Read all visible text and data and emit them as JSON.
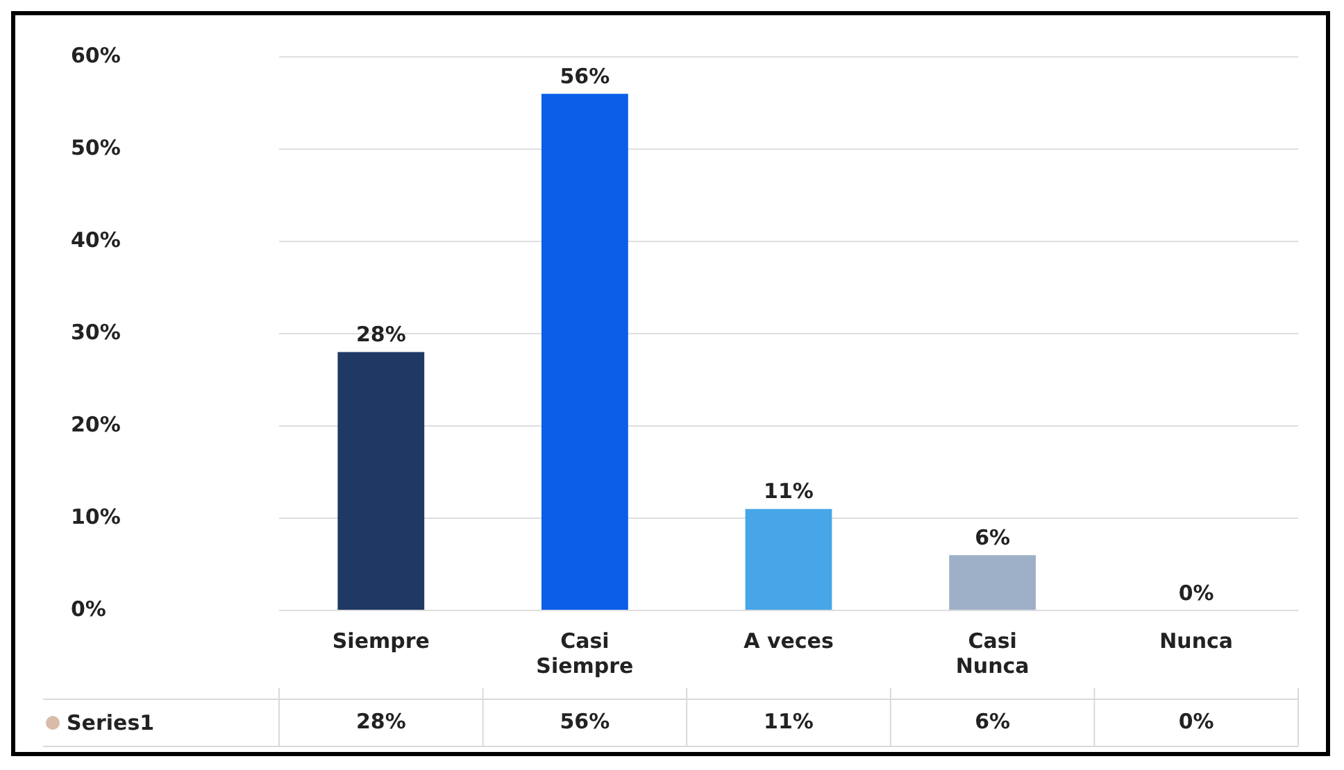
{
  "chart_data": {
    "type": "bar",
    "categories": [
      "Siempre",
      "Casi Siempre",
      "A veces",
      "Casi Nunca",
      "Nunca"
    ],
    "series": [
      {
        "name": "Series1",
        "color": "#d9bca8",
        "colors": [
          "#1f3864",
          "#0a5ee8",
          "#47a6e8",
          "#9eb0c8",
          "#5a5a5a"
        ],
        "values": [
          28,
          56,
          11,
          6,
          0
        ]
      }
    ],
    "ylim": [
      0,
      60
    ],
    "yticks": [
      {
        "value": 0,
        "label": "0%"
      },
      {
        "value": 10,
        "label": "10%"
      },
      {
        "value": 20,
        "label": "20%"
      },
      {
        "value": 30,
        "label": "30%"
      },
      {
        "value": 40,
        "label": "40%"
      },
      {
        "value": 50,
        "label": "50%"
      },
      {
        "value": 60,
        "label": "60%"
      }
    ],
    "grid": "y",
    "value_labels": [
      "28%",
      "56%",
      "11%",
      "6%",
      "0%"
    ]
  }
}
